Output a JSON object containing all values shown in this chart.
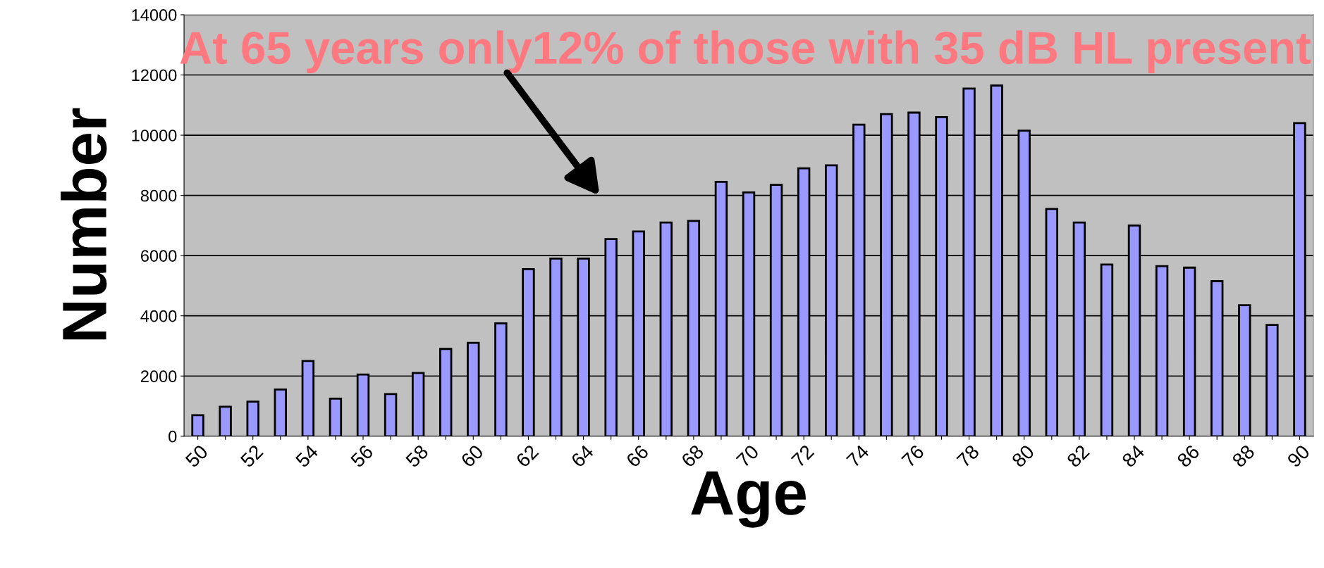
{
  "chart_data": {
    "type": "bar",
    "xlabel": "Age",
    "ylabel": "Number",
    "categories": [
      "50",
      null,
      "52",
      null,
      "54",
      null,
      "56",
      null,
      "58",
      null,
      "60",
      null,
      "62",
      null,
      "64",
      null,
      "66",
      null,
      "68",
      null,
      "70",
      null,
      "72",
      null,
      "74",
      null,
      "76",
      null,
      "78",
      null,
      "80",
      null,
      "82",
      null,
      "84",
      null,
      "86",
      null,
      "88",
      null,
      "90"
    ],
    "values": [
      700,
      980,
      1150,
      1550,
      2500,
      1250,
      2050,
      1400,
      2100,
      2900,
      3100,
      3750,
      5550,
      5900,
      5900,
      6550,
      6800,
      7100,
      7150,
      8450,
      8100,
      8350,
      8900,
      9000,
      10350,
      10700,
      10750,
      10600,
      11550,
      11650,
      10150,
      7550,
      7100,
      5700,
      7000,
      5650,
      5600,
      5150,
      4350,
      3700,
      10400
    ],
    "color": "#9999ff",
    "ylim": [
      0,
      14000
    ],
    "yticks": [
      0,
      2000,
      4000,
      6000,
      8000,
      10000,
      12000,
      14000
    ],
    "grid": "y",
    "annotations": [
      "At 65 years only12% of those with 35 dB HL present"
    ]
  }
}
